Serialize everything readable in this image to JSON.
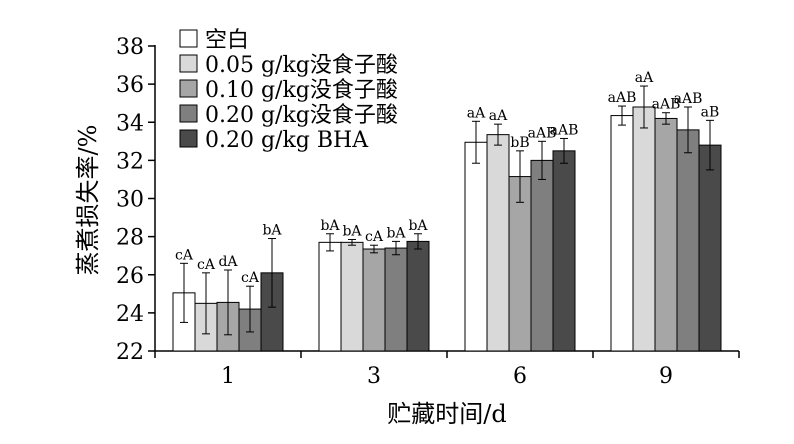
{
  "chart_data": {
    "type": "bar",
    "xlabel": "贮藏时间/d",
    "ylabel": "蒸煮损失率/%",
    "categories": [
      "1",
      "3",
      "6",
      "9"
    ],
    "ylim": [
      22,
      38
    ],
    "yticks": [
      22,
      24,
      26,
      28,
      30,
      32,
      34,
      36,
      38
    ],
    "grid": false,
    "legend_position": "top-left",
    "series": [
      {
        "name": "空白",
        "color": "#ffffff",
        "values": [
          25.05,
          27.7,
          32.95,
          34.35
        ],
        "errors": [
          1.55,
          0.45,
          1.1,
          0.5
        ],
        "sig": [
          "cA",
          "bA",
          "aA",
          "aAB"
        ]
      },
      {
        "name": "0.05 g/kg没食子酸",
        "color": "#d9d9d9",
        "values": [
          24.5,
          27.7,
          33.35,
          34.8
        ],
        "errors": [
          1.6,
          0.15,
          0.55,
          1.1
        ],
        "sig": [
          "cA",
          "bA",
          "aA",
          "aA"
        ]
      },
      {
        "name": "0.10 g/kg没食子酸",
        "color": "#a6a6a6",
        "values": [
          24.55,
          27.35,
          31.15,
          34.2
        ],
        "errors": [
          1.7,
          0.2,
          1.35,
          0.3
        ],
        "sig": [
          "dA",
          "cA",
          "bB",
          "aAB"
        ]
      },
      {
        "name": "0.20 g/kg没食子酸",
        "color": "#7f7f7f",
        "values": [
          24.2,
          27.4,
          32.0,
          33.6
        ],
        "errors": [
          1.2,
          0.35,
          1.0,
          1.2
        ],
        "sig": [
          "cA",
          "bA",
          "aAB",
          "aAB"
        ]
      },
      {
        "name": "0.20 g/kg BHA",
        "color": "#4a4a4a",
        "values": [
          26.1,
          27.75,
          32.5,
          32.8
        ],
        "errors": [
          1.8,
          0.4,
          0.65,
          1.3
        ],
        "sig": [
          "bA",
          "bA",
          "aAB",
          "aB"
        ]
      }
    ]
  }
}
